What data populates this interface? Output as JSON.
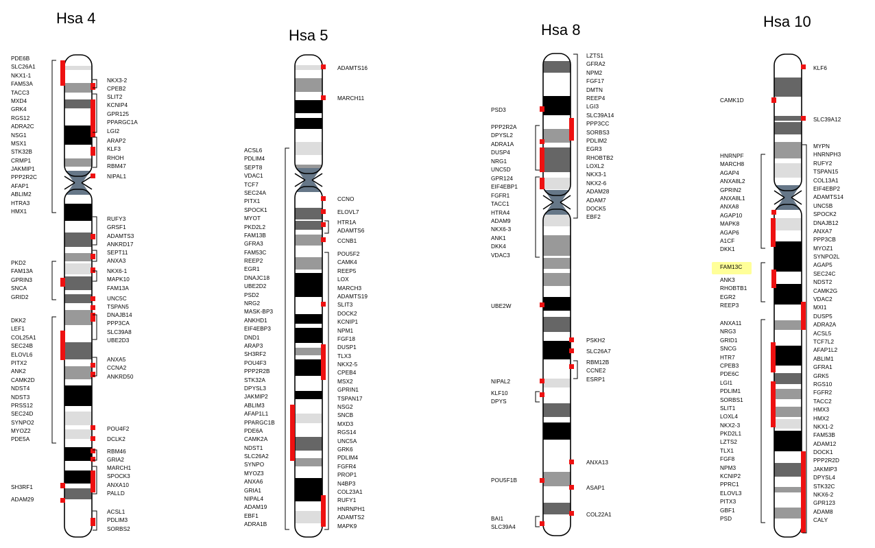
{
  "chromosomes": [
    {
      "id": "hsa4",
      "title": "Hsa 4",
      "gene_groups": [
        {
          "side": "left",
          "genes": [
            "PDE6B",
            "SLC26A1",
            "NKX1-1",
            "FAM53A",
            "TACC3",
            "MXD4",
            "GRK4",
            "RGS12",
            "ADRA2C",
            "NSG1",
            "MSX1",
            "STK32B",
            "CRMP1",
            "JAKMIP1",
            "PPP2R2C",
            "AFAP1",
            "ABLIM2",
            "HTRA3",
            "HMX1"
          ]
        },
        {
          "side": "right",
          "genes": [
            "NKX3-2",
            "CPEB2"
          ]
        },
        {
          "side": "right",
          "genes": [
            "SLIT2",
            "KCNIP4",
            "GPR125",
            "PPARGC1A",
            "LGI2"
          ]
        },
        {
          "side": "right",
          "genes": [
            "ARAP2",
            "KLF3",
            "RHOH",
            "RBM47"
          ]
        },
        {
          "side": "right",
          "genes": [
            "NIPAL1"
          ]
        },
        {
          "side": "right",
          "genes": [
            "RUFY3",
            "GRSF1",
            "ADAMTS3",
            "ANKRD17"
          ]
        },
        {
          "side": "right",
          "genes": [
            "SEPT11",
            "ANXA3"
          ]
        },
        {
          "side": "left",
          "genes": [
            "PKD2",
            "FAM13A",
            "GPRIN3",
            "SNCA",
            "GRID2"
          ]
        },
        {
          "side": "right",
          "genes": [
            "NKX6-1",
            "MAPK10",
            "FAM13A"
          ]
        },
        {
          "side": "right",
          "genes": [
            "UNC5C"
          ]
        },
        {
          "side": "right",
          "genes": [
            "TSPAN5"
          ]
        },
        {
          "side": "right",
          "genes": [
            "DNAJB14",
            "PPP3CA",
            "SLC39A8",
            "UBE2D3"
          ]
        },
        {
          "side": "left",
          "genes": [
            "DKK2",
            "LEF1",
            "COL25A1",
            "SEC24B",
            "ELOVL6",
            "PITX2",
            "ANK2",
            "CAMK2D",
            "NDST4",
            "NDST3",
            "PRSS12",
            "SEC24D",
            "SYNPO2",
            "MYOZ2",
            "PDE5A"
          ]
        },
        {
          "side": "right",
          "genes": [
            "ANXA5",
            "CCNA2",
            "ANKRD50"
          ]
        },
        {
          "side": "right",
          "genes": [
            "POU4F2"
          ]
        },
        {
          "side": "right",
          "genes": [
            "DCLK2"
          ]
        },
        {
          "side": "right",
          "genes": [
            "RBM46",
            "GRIA2"
          ]
        },
        {
          "side": "right",
          "genes": [
            "MARCH1",
            "SPOCK3",
            "ANXA10",
            "PALLD"
          ]
        },
        {
          "side": "left",
          "genes": [
            "SH3RF1"
          ]
        },
        {
          "side": "left",
          "genes": [
            "ADAM29"
          ]
        },
        {
          "side": "right",
          "genes": [
            "ACSL1",
            "PDLIM3",
            "SORBS2"
          ]
        }
      ]
    },
    {
      "id": "hsa5",
      "title": "Hsa 5",
      "gene_groups": [
        {
          "side": "right",
          "genes": [
            "ADAMTS16"
          ]
        },
        {
          "side": "right",
          "genes": [
            "MARCH11"
          ]
        },
        {
          "side": "left",
          "genes": [
            "ACSL6",
            "PDLIM4",
            "SEPT8",
            "VDAC1",
            "TCF7",
            "SEC24A",
            "PITX1",
            "SPOCK1",
            "MYOT",
            "PKD2L2",
            "FAM13B",
            "GFRA3",
            "FAM53C",
            "REEP2",
            "EGR1",
            "DNAJC18",
            "UBE2D2",
            "PSD2",
            "NRG2",
            "MASK-BP3",
            "ANKHD1",
            "EIF4EBP3",
            "DND1",
            "ARAP3",
            "SH3RF2",
            "POU4F3",
            "PPP2R2B",
            "STK32A",
            "DPYSL3",
            "JAKMIP2",
            "ABLIM3",
            "AFAP1L1",
            "PPARGC1B",
            "PDE6A",
            "CAMK2A",
            "NDST1",
            "SLC26A2",
            "SYNPO",
            "MYOZ3",
            "ANXA6",
            "GRIA1",
            "NIPAL4",
            "ADAM19",
            "EBF1",
            "ADRA1B"
          ]
        },
        {
          "side": "right",
          "genes": [
            "CCNO"
          ]
        },
        {
          "side": "right",
          "genes": [
            "ELOVL7"
          ]
        },
        {
          "side": "right",
          "genes": [
            "HTR1A",
            "ADAMTS6"
          ]
        },
        {
          "side": "right",
          "genes": [
            "CCNB1"
          ]
        },
        {
          "side": "right",
          "genes": [
            "POU5F2",
            "CAMK4",
            "REEP5",
            "LOX",
            "MARCH3",
            "ADAMTS19",
            "SLIT3",
            "DOCK2",
            "KCNIP1",
            "NPM1",
            "FGF18",
            "DUSP1",
            "TLX3",
            "NKX2-5",
            "CPEB4",
            "MSX2",
            "GPRIN1",
            "TSPAN17",
            "NSG2",
            "SNCB",
            "MXD3",
            "RGS14",
            "UNC5A",
            "GRK6",
            "PDLIM4",
            "FGFR4",
            "PROP1",
            "N4BP3",
            "COL23A1",
            "RUFY1",
            "HNRNPH1",
            "ADAMTS2",
            "MAPK9"
          ]
        }
      ]
    },
    {
      "id": "hsa8",
      "title": "Hsa 8",
      "gene_groups": [
        {
          "side": "right",
          "genes": [
            "LZTS1",
            "GFRA2",
            "NPM2",
            "FGF17",
            "DMTN",
            "REEP4",
            "LGI3",
            "SLC39A14",
            "PPP3CC",
            "SORBS3",
            "PDLIM2",
            "EGR3",
            "RHOBTB2",
            "LOXL2",
            "NKX3-1",
            "NKX2-6",
            "ADAM28",
            "ADAM7",
            "DOCK5",
            "EBF2"
          ]
        },
        {
          "side": "left",
          "genes": [
            "PSD3"
          ]
        },
        {
          "side": "left",
          "genes": [
            "PPP2R2A",
            "DPYSL2",
            "ADRA1A",
            "DUSP4",
            "NRG1",
            "UNC5D"
          ]
        },
        {
          "side": "left",
          "genes": [
            "GPR124",
            "EIF4EBP1",
            "FGFR1",
            "TACC1",
            "HTRA4",
            "ADAM9",
            "NKX6-3",
            "ANK1",
            "DKK4",
            "VDAC3"
          ]
        },
        {
          "side": "left",
          "genes": [
            "UBE2W"
          ]
        },
        {
          "side": "right",
          "genes": [
            "PSKH2"
          ]
        },
        {
          "side": "right",
          "genes": [
            "SLC26A7"
          ]
        },
        {
          "side": "right",
          "genes": [
            "RBM12B",
            "CCNE2",
            "ESRP1"
          ]
        },
        {
          "side": "left",
          "genes": [
            "NIPAL2"
          ]
        },
        {
          "side": "left",
          "genes": [
            "KLF10",
            "DPYS"
          ]
        },
        {
          "side": "right",
          "genes": [
            "ANXA13"
          ]
        },
        {
          "side": "left",
          "genes": [
            "POU5F1B"
          ]
        },
        {
          "side": "right",
          "genes": [
            "ASAP1"
          ]
        },
        {
          "side": "right",
          "genes": [
            "COL22A1"
          ]
        },
        {
          "side": "left",
          "genes": [
            "BAI1",
            "SLC39A4"
          ]
        }
      ]
    },
    {
      "id": "hsa10",
      "title": "Hsa 10",
      "gene_groups": [
        {
          "side": "right",
          "genes": [
            "KLF6"
          ]
        },
        {
          "side": "left",
          "genes": [
            "CAMK1D"
          ]
        },
        {
          "side": "right",
          "genes": [
            "SLC39A12"
          ]
        },
        {
          "side": "right",
          "genes": [
            "MYPN",
            "HNRNPH3",
            "RUFY2",
            "TSPAN15",
            "COL13A1",
            "EIF4EBP2",
            "ADAMTS14",
            "UNC5B",
            "SPOCK2",
            "DNAJB12",
            "ANXA7",
            "PPP3CB",
            "MYOZ1",
            "SYNPO2L",
            "AGAP5",
            "SEC24C",
            "NDST2",
            "CAMK2G",
            "VDAC2",
            "MXI1",
            "DUSP5",
            "ADRA2A",
            "ACSL5",
            "TCF7L2",
            "AFAP1L2",
            "ABLIM1",
            "GFRA1",
            "GRK5",
            "RGS10",
            "FGFR2",
            "TACC2",
            "HMX3",
            "HMX2",
            "NKX1-2",
            "FAM53B",
            "ADAM12",
            "DOCK1",
            "PPP2R2D",
            "JAKMIP3",
            "DPYSL4",
            "STK32C",
            "NKX6-2",
            "GPR123",
            "ADAM8",
            "CALY"
          ]
        },
        {
          "side": "left",
          "genes": [
            "HNRNPF",
            "MARCH8",
            "AGAP4",
            "ANXA8L2",
            "GPRIN2",
            "ANXA8L1",
            "ANXA8",
            "AGAP10",
            "MAPK8",
            "AGAP6",
            "A1CF",
            "DKK1"
          ]
        },
        {
          "side": "left",
          "highlight": "FAM13C",
          "genes": [
            "FAM13C",
            "ANK3",
            "RHOBTB1",
            "EGR2",
            "REEP3"
          ]
        },
        {
          "side": "left",
          "genes": [
            "ANXA11",
            "NRG3",
            "GRID1",
            "SNCG",
            "HTR7",
            "CPEB3",
            "PDE6C",
            "LGI1",
            "PDLIM1",
            "SORBS1",
            "SLIT1",
            "LOXL4",
            "NKX2-3",
            "PKD2L1",
            "LZTS2",
            "TLX1",
            "FGF8",
            "NPM3",
            "KCNIP2",
            "PPRC1",
            "ELOVL3",
            "PITX3",
            "GBF1",
            "PSD"
          ]
        }
      ]
    }
  ],
  "colors": {
    "marker": "#ee1111",
    "highlight": "#ffff99",
    "band_black": "#000000",
    "band_dark": "#666666",
    "band_mid": "#999999",
    "band_light": "#dddddd",
    "centromere": "#667788"
  }
}
